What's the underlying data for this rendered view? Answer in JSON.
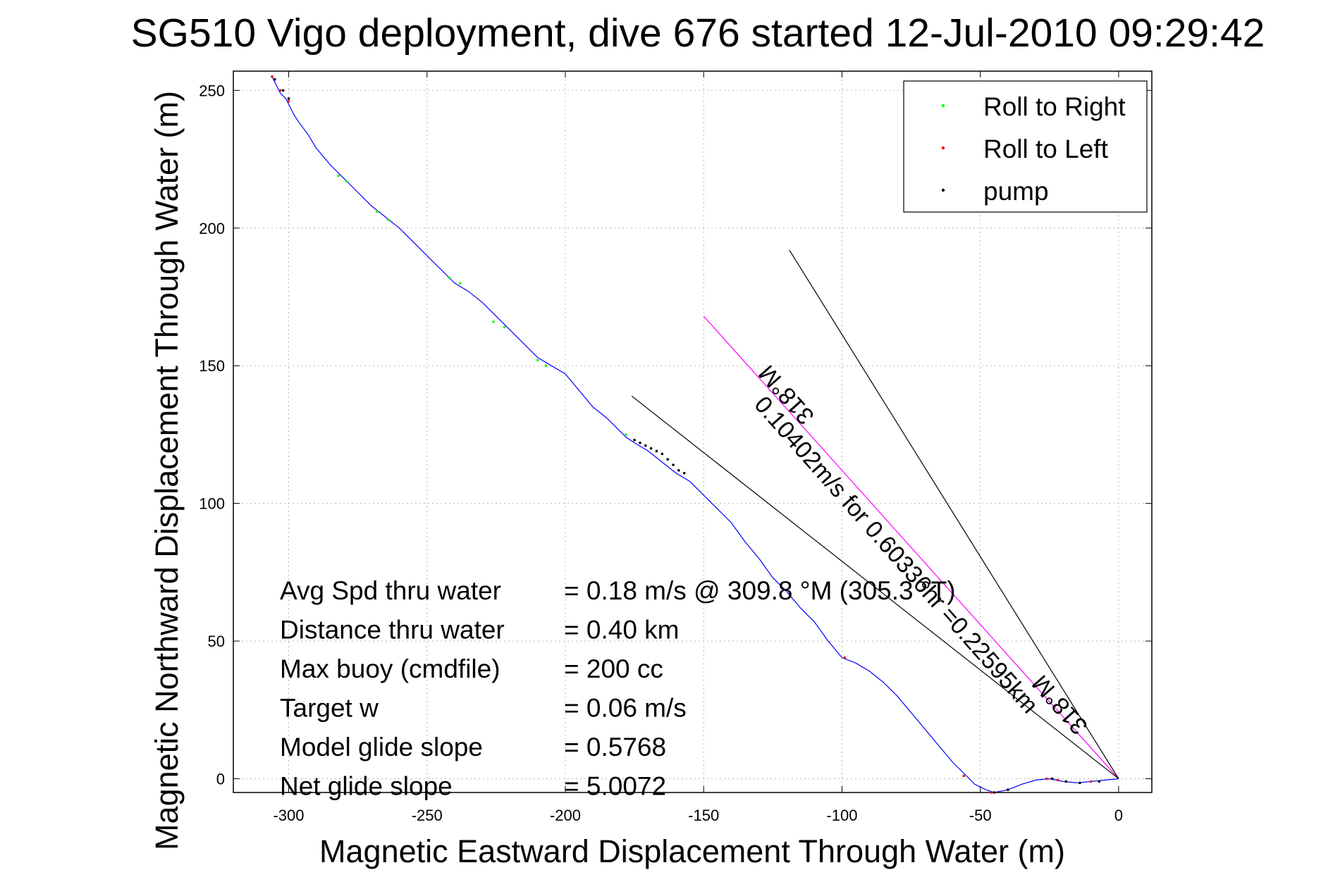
{
  "chart_data": {
    "type": "line",
    "title": "SG510 Vigo deployment, dive 676 started 12-Jul-2010 09:29:42",
    "xlabel": "Magnetic Eastward Displacement Through Water (m)",
    "ylabel": "Magnetic Northward Displacement Through Water (m)",
    "xlim": [
      -320,
      12
    ],
    "ylim": [
      -5,
      257
    ],
    "xticks": [
      -300,
      -250,
      -200,
      -150,
      -100,
      -50,
      0
    ],
    "yticks": [
      0,
      50,
      100,
      150,
      200,
      250
    ],
    "grid": true,
    "legend_position": "top-right",
    "legend": [
      {
        "label": "Roll to Right",
        "color": "#00ff00"
      },
      {
        "label": "Roll to Left",
        "color": "#ff0000"
      },
      {
        "label": "pump",
        "color": "#000000"
      }
    ],
    "track": {
      "color": "#0000ff",
      "points": [
        [
          0,
          0
        ],
        [
          -5,
          -0.5
        ],
        [
          -10,
          -1
        ],
        [
          -15,
          -1.5
        ],
        [
          -20,
          -1
        ],
        [
          -25,
          0
        ],
        [
          -30,
          -0.5
        ],
        [
          -35,
          -2
        ],
        [
          -40,
          -4
        ],
        [
          -45,
          -5
        ],
        [
          -48,
          -4
        ],
        [
          -52,
          -2
        ],
        [
          -55,
          1
        ],
        [
          -60,
          6
        ],
        [
          -65,
          12
        ],
        [
          -70,
          18
        ],
        [
          -75,
          24
        ],
        [
          -80,
          30
        ],
        [
          -85,
          35
        ],
        [
          -90,
          39
        ],
        [
          -95,
          42
        ],
        [
          -100,
          44
        ],
        [
          -105,
          50
        ],
        [
          -110,
          57
        ],
        [
          -115,
          62
        ],
        [
          -120,
          68
        ],
        [
          -125,
          73
        ],
        [
          -130,
          80
        ],
        [
          -135,
          86
        ],
        [
          -140,
          93
        ],
        [
          -145,
          98
        ],
        [
          -150,
          103
        ],
        [
          -155,
          108
        ],
        [
          -160,
          111
        ],
        [
          -165,
          115
        ],
        [
          -170,
          119
        ],
        [
          -175,
          122
        ],
        [
          -178,
          124
        ],
        [
          -182,
          128
        ],
        [
          -185,
          131
        ],
        [
          -190,
          135
        ],
        [
          -195,
          141
        ],
        [
          -200,
          147
        ],
        [
          -205,
          150
        ],
        [
          -210,
          153
        ],
        [
          -215,
          158
        ],
        [
          -220,
          163
        ],
        [
          -225,
          168
        ],
        [
          -230,
          173
        ],
        [
          -235,
          177
        ],
        [
          -240,
          180
        ],
        [
          -245,
          185
        ],
        [
          -250,
          190
        ],
        [
          -255,
          195
        ],
        [
          -260,
          200
        ],
        [
          -265,
          204
        ],
        [
          -270,
          208
        ],
        [
          -275,
          213
        ],
        [
          -280,
          218
        ],
        [
          -285,
          223
        ],
        [
          -290,
          229
        ],
        [
          -293,
          234
        ],
        [
          -296,
          238
        ],
        [
          -298,
          241
        ],
        [
          -300,
          245
        ],
        [
          -301,
          247
        ],
        [
          -303,
          249
        ],
        [
          -305,
          253
        ],
        [
          -306,
          255
        ]
      ]
    },
    "markers": {
      "roll_right": [
        [
          -282,
          219
        ],
        [
          -279,
          217
        ],
        [
          -268,
          206
        ],
        [
          -264,
          203
        ],
        [
          -242,
          182
        ],
        [
          -238,
          180
        ],
        [
          -226,
          166
        ],
        [
          -222,
          164
        ],
        [
          -210,
          152
        ],
        [
          -207,
          150
        ],
        [
          -178,
          125
        ],
        [
          -175,
          123
        ]
      ],
      "roll_left": [
        [
          -306,
          255
        ],
        [
          -303,
          250
        ],
        [
          -300,
          246
        ],
        [
          -56,
          1
        ],
        [
          -46,
          -5
        ],
        [
          -26,
          0
        ],
        [
          -22,
          -0.5
        ],
        [
          -10,
          -1
        ],
        [
          -99,
          44
        ]
      ],
      "pump": [
        [
          -175,
          123
        ],
        [
          -173,
          122
        ],
        [
          -171,
          121
        ],
        [
          -169,
          120
        ],
        [
          -167,
          119
        ],
        [
          -165,
          118
        ],
        [
          -163,
          116
        ],
        [
          -161,
          114
        ],
        [
          -159,
          112
        ],
        [
          -157,
          111
        ],
        [
          -305,
          254
        ],
        [
          -302,
          250
        ],
        [
          -300,
          247
        ],
        [
          -24,
          0
        ],
        [
          -19,
          -1
        ],
        [
          -14,
          -1.5
        ],
        [
          -40,
          -4
        ],
        [
          -45,
          -5
        ],
        [
          -7,
          -1
        ]
      ]
    },
    "reference_lines": [
      {
        "from": [
          0,
          0
        ],
        "to": [
          -150,
          168
        ],
        "color": "#ff00ff"
      },
      {
        "from": [
          0,
          0
        ],
        "to": [
          -119,
          192
        ],
        "color": "#000000"
      },
      {
        "from": [
          0,
          0
        ],
        "to": [
          -176,
          139
        ],
        "color": "#000000"
      }
    ],
    "annotations": {
      "long_label": "0.10402m/s for 0.60336hr =0.22595km",
      "heading_label": "318°M",
      "stats": [
        {
          "name": "Avg Spd thru water",
          "value": "=  0.18 m/s @ 309.8 °M (305.3 °T)"
        },
        {
          "name": "Distance thru water",
          "value": "=  0.40 km"
        },
        {
          "name": "Max buoy (cmdfile)",
          "value": "= 200 cc"
        },
        {
          "name": "Target w",
          "value": "= 0.06 m/s"
        },
        {
          "name": "Model glide slope",
          "value": "= 0.5768"
        },
        {
          "name": "Net glide slope",
          "value": "= 5.0072"
        }
      ]
    }
  }
}
